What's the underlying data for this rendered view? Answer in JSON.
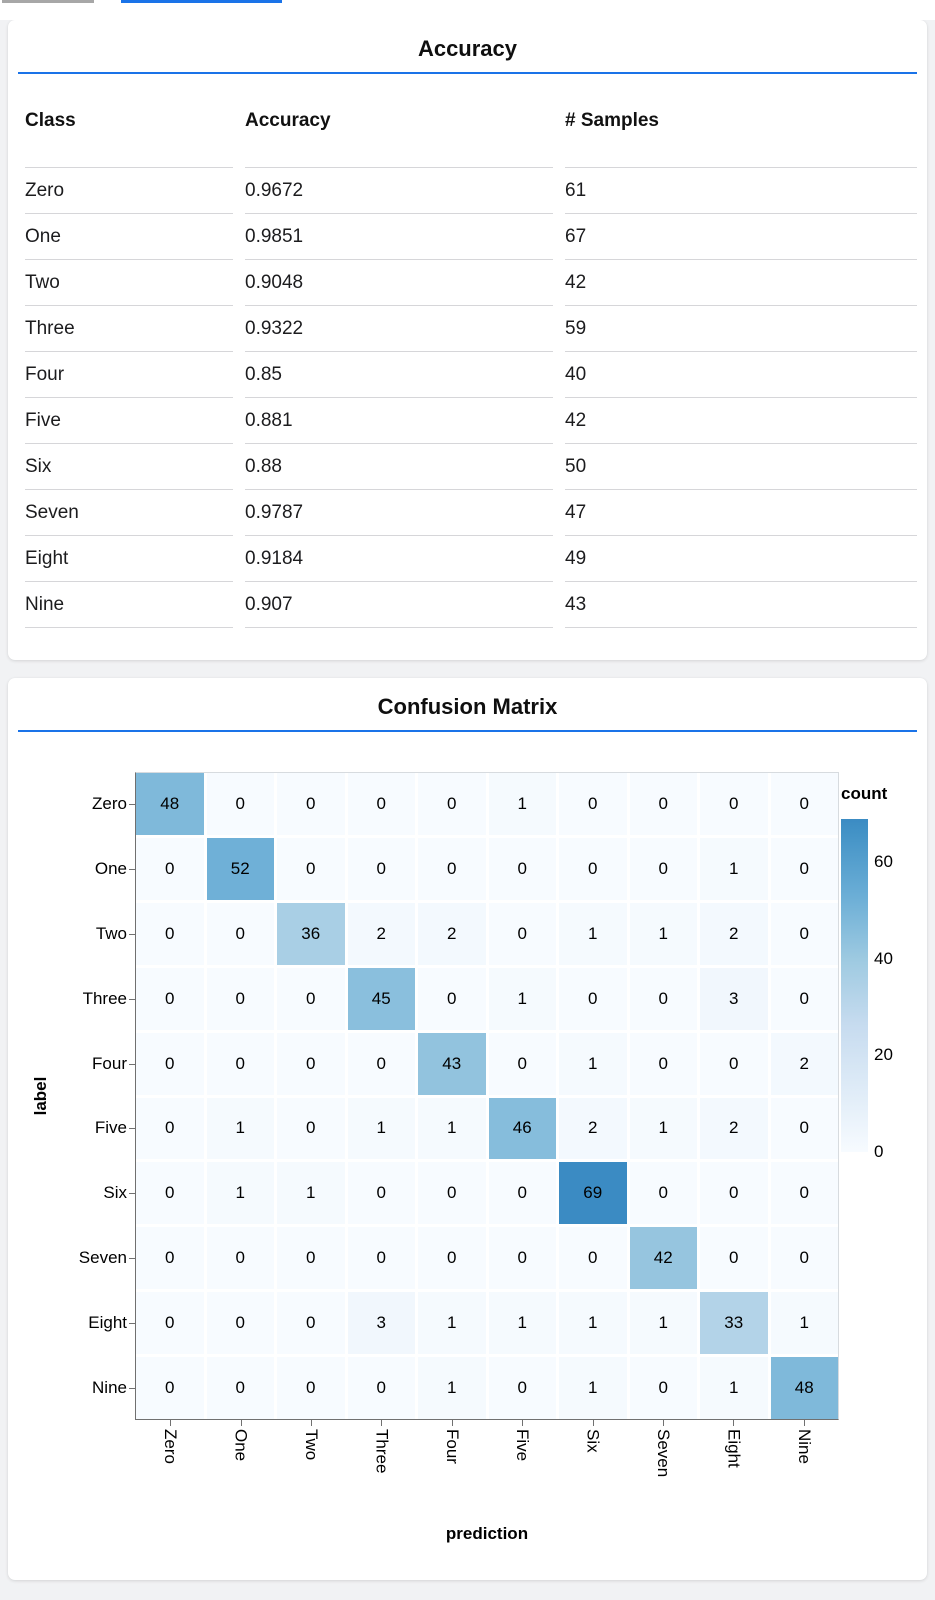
{
  "app": {
    "background": "#f1f2f4",
    "card_background": "#ffffff",
    "accent_rule_color": "#1a73e8",
    "top_bars": {
      "gray_color": "#a7a7a7",
      "blue_color": "#1a73e8"
    }
  },
  "chart_data": [
    {
      "type": "table",
      "title": "Accuracy",
      "columns": [
        "Class",
        "Accuracy",
        "# Samples"
      ],
      "rows": [
        [
          "Zero",
          "0.9672",
          "61"
        ],
        [
          "One",
          "0.9851",
          "67"
        ],
        [
          "Two",
          "0.9048",
          "42"
        ],
        [
          "Three",
          "0.9322",
          "59"
        ],
        [
          "Four",
          "0.85",
          "40"
        ],
        [
          "Five",
          "0.881",
          "42"
        ],
        [
          "Six",
          "0.88",
          "50"
        ],
        [
          "Seven",
          "0.9787",
          "47"
        ],
        [
          "Eight",
          "0.9184",
          "49"
        ],
        [
          "Nine",
          "0.907",
          "43"
        ]
      ]
    },
    {
      "type": "heatmap",
      "title": "Confusion Matrix",
      "xlabel": "prediction",
      "ylabel": "label",
      "categories": [
        "Zero",
        "One",
        "Two",
        "Three",
        "Four",
        "Five",
        "Six",
        "Seven",
        "Eight",
        "Nine"
      ],
      "matrix": [
        [
          48,
          0,
          0,
          0,
          0,
          1,
          0,
          0,
          0,
          0
        ],
        [
          0,
          52,
          0,
          0,
          0,
          0,
          0,
          0,
          1,
          0
        ],
        [
          0,
          0,
          36,
          2,
          2,
          0,
          1,
          1,
          2,
          0
        ],
        [
          0,
          0,
          0,
          45,
          0,
          1,
          0,
          0,
          3,
          0
        ],
        [
          0,
          0,
          0,
          0,
          43,
          0,
          1,
          0,
          0,
          2
        ],
        [
          0,
          1,
          0,
          1,
          1,
          46,
          2,
          1,
          2,
          0
        ],
        [
          0,
          1,
          1,
          0,
          0,
          0,
          69,
          0,
          0,
          0
        ],
        [
          0,
          0,
          0,
          0,
          0,
          0,
          0,
          42,
          0,
          0
        ],
        [
          0,
          0,
          0,
          3,
          1,
          1,
          1,
          1,
          33,
          1
        ],
        [
          0,
          0,
          0,
          0,
          1,
          0,
          1,
          0,
          1,
          48
        ]
      ],
      "legend": {
        "title": "count",
        "ticks": [
          60,
          40,
          20,
          0
        ],
        "domain": [
          0,
          69
        ],
        "position": "right"
      },
      "color_scheme": {
        "name": "blues",
        "anchors": [
          "#f7fbff",
          "#deebf7",
          "#c6dbef",
          "#9ecae1",
          "#6baed6",
          "#4292c6",
          "#2171b5"
        ],
        "max_t": 0.65
      },
      "grid": false
    }
  ]
}
